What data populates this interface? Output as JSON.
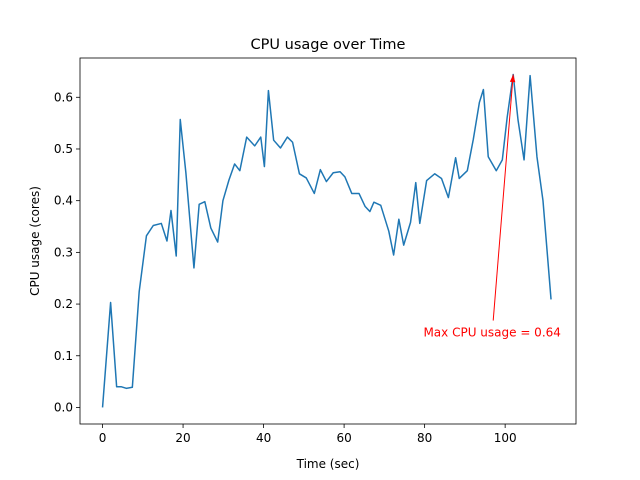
{
  "chart_data": {
    "type": "line",
    "title": "CPU usage over Time",
    "x_label": "Time (sec)",
    "y_label": "CPU usage (cores)",
    "x": [
      0,
      2,
      3.5,
      4.7,
      5.9,
      7.4,
      9.1,
      10.9,
      12.6,
      14.6,
      16,
      17,
      18.3,
      19.3,
      20.7,
      22.7,
      24,
      25.4,
      26.9,
      28.6,
      29.9,
      31.4,
      32.8,
      34.1,
      35.8,
      37.8,
      39.3,
      40.2,
      41.2,
      42.5,
      44.2,
      45.9,
      47.2,
      48.9,
      50.6,
      52.6,
      54.1,
      55.6,
      57.3,
      59,
      60.2,
      61.9,
      63.7,
      65.2,
      66.4,
      67.4,
      69.1,
      71.1,
      72.3,
      73.6,
      74.8,
      76.5,
      77.8,
      78.8,
      80.5,
      82.5,
      84.2,
      85.9,
      87.7,
      88.6,
      90.6,
      92.1,
      93.6,
      94.6,
      95.8,
      97.8,
      99.3,
      100.5,
      102,
      103.2,
      104.7,
      106.2,
      107.9,
      109.4,
      111.4
    ],
    "series": [
      {
        "color": "#1f77b4",
        "values": [
          0,
          0.203,
          0.04,
          0.04,
          0.037,
          0.039,
          0.224,
          0.332,
          0.352,
          0.356,
          0.322,
          0.381,
          0.293,
          0.557,
          0.454,
          0.27,
          0.393,
          0.398,
          0.347,
          0.32,
          0.4,
          0.44,
          0.471,
          0.458,
          0.523,
          0.506,
          0.523,
          0.466,
          0.613,
          0.517,
          0.502,
          0.523,
          0.513,
          0.452,
          0.444,
          0.414,
          0.46,
          0.437,
          0.454,
          0.456,
          0.446,
          0.414,
          0.414,
          0.389,
          0.379,
          0.397,
          0.391,
          0.341,
          0.295,
          0.364,
          0.314,
          0.358,
          0.435,
          0.356,
          0.439,
          0.452,
          0.443,
          0.406,
          0.483,
          0.443,
          0.458,
          0.519,
          0.59,
          0.615,
          0.485,
          0.458,
          0.479,
          0.561,
          0.644,
          0.556,
          0.479,
          0.642,
          0.485,
          0.4,
          0.209
        ]
      }
    ],
    "xlim": [
      -5.6,
      117.6
    ],
    "ylim": [
      -0.032,
      0.676
    ],
    "xticks": [
      0,
      20,
      40,
      60,
      80,
      100
    ],
    "yticks": [
      {
        "value": 0,
        "label": "0.0"
      },
      0.1,
      0.2,
      0.3,
      0.4,
      0.5,
      0.6
    ],
    "annotation": {
      "text": "Max CPU usage = 0.64",
      "x": 102,
      "y": 0.644,
      "color": "#ff0000"
    }
  }
}
